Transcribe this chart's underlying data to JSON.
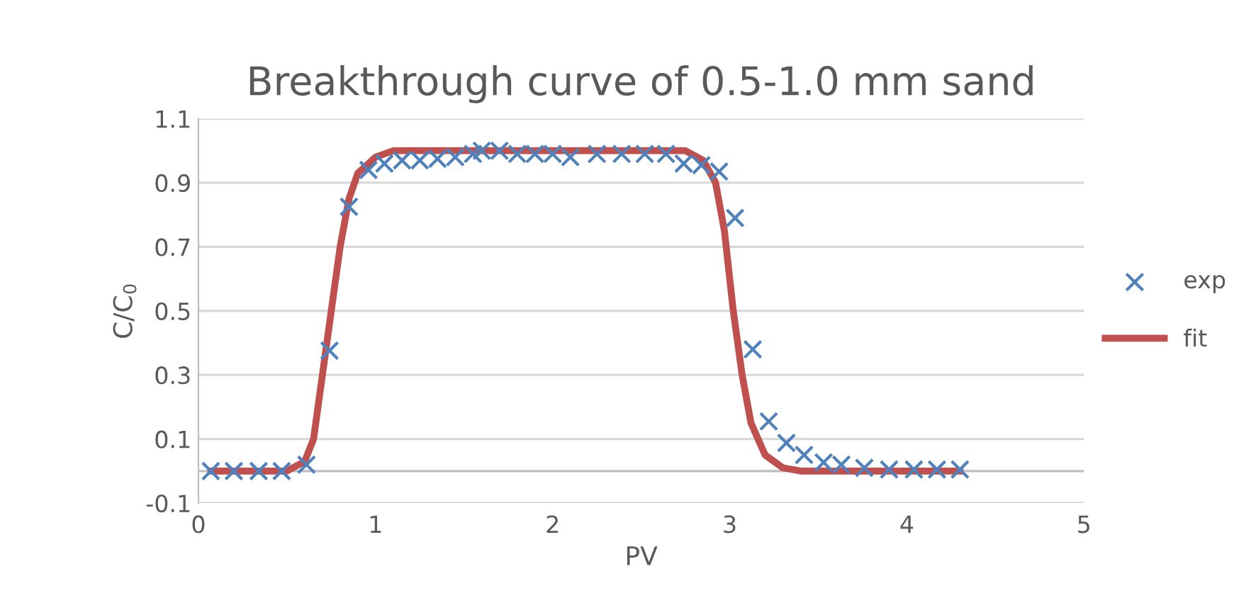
{
  "chart_data": {
    "type": "scatter",
    "title": "Breakthrough curve of 0.5-1.0 mm sand",
    "xlabel": "PV",
    "ylabel": "C/C$_{0}$",
    "xlim": [
      0,
      5
    ],
    "xticks": [
      0,
      1,
      2,
      3,
      4,
      5
    ],
    "ylim": [
      -0.1,
      1.1
    ],
    "yticks": [
      -0.1,
      0.1,
      0.3,
      0.5,
      0.7,
      0.9,
      1.1
    ],
    "grid": "y",
    "legend": "right",
    "ref_lines": [
      {
        "axis": "y",
        "value": 0,
        "label": null,
        "color": "#bfbfbf"
      }
    ],
    "series": [
      {
        "name": "exp",
        "marker": "cross",
        "color": "#4f81bd",
        "x": [
          0.07,
          0.2,
          0.34,
          0.47,
          0.61,
          0.74,
          0.85,
          0.96,
          1.05,
          1.15,
          1.25,
          1.35,
          1.45,
          1.55,
          1.6,
          1.7,
          1.8,
          1.9,
          2.0,
          2.1,
          2.25,
          2.39,
          2.52,
          2.64,
          2.74,
          2.84,
          2.94,
          3.03,
          3.13,
          3.22,
          3.32,
          3.42,
          3.53,
          3.63,
          3.76,
          3.9,
          4.04,
          4.17,
          4.3
        ],
        "values": [
          0,
          0,
          0,
          0,
          0.02,
          0.376,
          0.825,
          0.94,
          0.96,
          0.97,
          0.97,
          0.975,
          0.98,
          0.99,
          1.0,
          1.0,
          0.99,
          0.99,
          0.99,
          0.98,
          0.99,
          0.99,
          0.99,
          0.99,
          0.96,
          0.955,
          0.935,
          0.79,
          0.38,
          0.155,
          0.088,
          0.05,
          0.027,
          0.02,
          0.01,
          0.005,
          0.005,
          0.005,
          0.005
        ]
      },
      {
        "name": "fit",
        "type": "line",
        "color": "#c0504d",
        "x": [
          0.07,
          0.5,
          0.6,
          0.65,
          0.7,
          0.75,
          0.8,
          0.85,
          0.9,
          1.0,
          1.1,
          2.75,
          2.85,
          2.92,
          2.97,
          3.02,
          3.07,
          3.12,
          3.2,
          3.3,
          3.4,
          4.3
        ],
        "values": [
          0,
          0,
          0.03,
          0.1,
          0.3,
          0.5,
          0.7,
          0.85,
          0.93,
          0.98,
          1.0,
          1.0,
          0.97,
          0.9,
          0.75,
          0.5,
          0.3,
          0.15,
          0.05,
          0.01,
          0,
          0
        ]
      }
    ]
  }
}
